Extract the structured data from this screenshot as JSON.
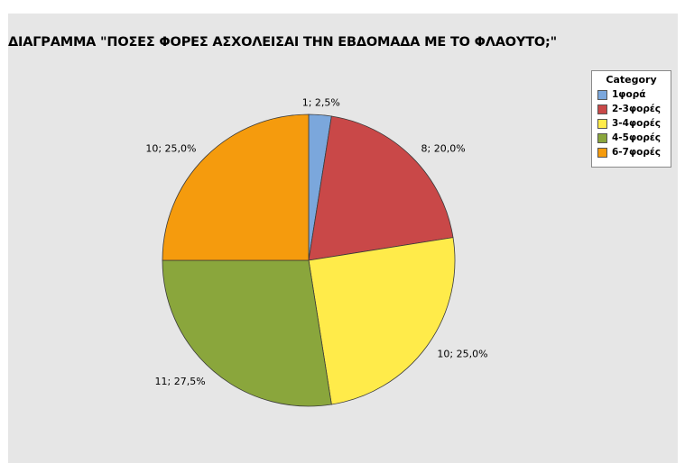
{
  "chart_data": {
    "type": "pie",
    "title": "ΔΙΑΓΡΑΜΜΑ \"ΠΟΣΕΣ ΦΟΡΕΣ ΑΣΧΟΛΕΙΣΑΙ ΤΗΝ ΕΒΔΟΜΑΔΑ ΜΕ ΤΟ ΦΛΑΟΥΤΟ;\"",
    "legend_title": "Category",
    "legend_position": "top-right",
    "slices": [
      {
        "category": "1φορά",
        "value": 1,
        "percent": 2.5,
        "label": "1; 2,5%",
        "color": "#7ba7dc"
      },
      {
        "category": "2-3φορές",
        "value": 8,
        "percent": 20.0,
        "label": "8; 20,0%",
        "color": "#c94848"
      },
      {
        "category": "3-4φορές",
        "value": 10,
        "percent": 25.0,
        "label": "10; 25,0%",
        "color": "#ffeb4a"
      },
      {
        "category": "4-5φορές",
        "value": 11,
        "percent": 27.5,
        "label": "11; 27,5%",
        "color": "#8aa63c"
      },
      {
        "category": "6-7φορές",
        "value": 10,
        "percent": 25.0,
        "label": "10; 25,0%",
        "color": "#f59b0d"
      }
    ]
  }
}
